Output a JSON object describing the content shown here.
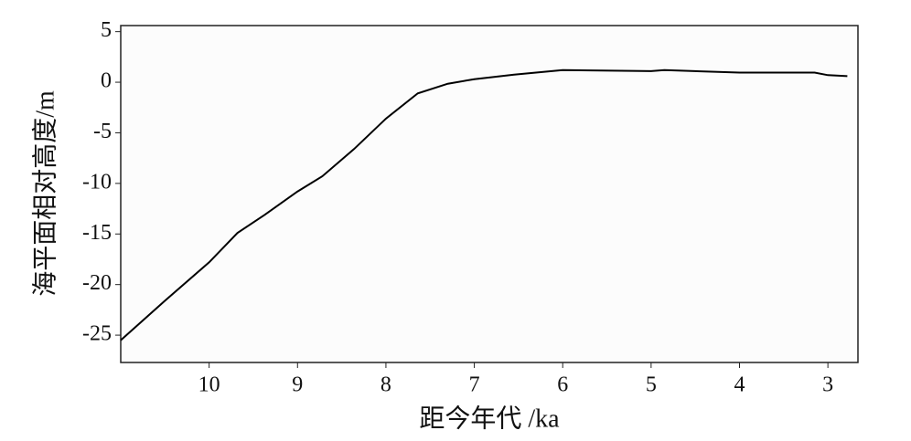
{
  "chart_data": {
    "type": "line",
    "x_label": "距今年代 /ka",
    "y_label": "海平面相对高度/m",
    "x": [
      11,
      10.5,
      10,
      9.68,
      9.37,
      9,
      8.72,
      8.36,
      8,
      7.64,
      7.3,
      7,
      6.55,
      6,
      5,
      4.85,
      4,
      3.15,
      3,
      2.78
    ],
    "series": [
      {
        "color": "#000000",
        "values": [
          -25.5,
          -21.6,
          -17.8,
          -14.9,
          -13.1,
          -10.8,
          -9.3,
          -6.6,
          -3.6,
          -1.1,
          -0.15,
          0.3,
          0.75,
          1.2,
          1.1,
          1.2,
          0.95,
          0.95,
          0.7,
          0.6
        ]
      }
    ],
    "xlim": [
      11,
      2.66
    ],
    "xticks": [
      10,
      9,
      8,
      7,
      6,
      5,
      4,
      3
    ],
    "ylim": [
      -27.7,
      5.6
    ],
    "yticks": [
      5,
      0,
      -5,
      -10,
      -15,
      -20,
      -25
    ]
  }
}
